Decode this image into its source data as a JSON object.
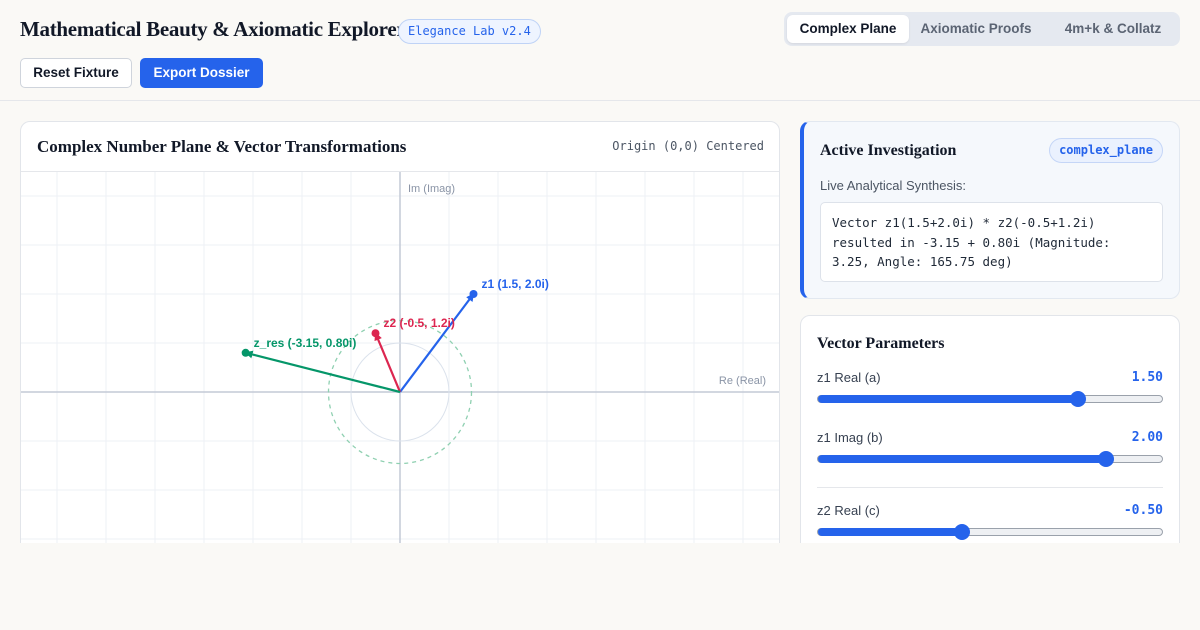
{
  "header": {
    "title": "Mathematical Beauty & Axiomatic Explorer",
    "version": "Elegance Lab v2.4",
    "tabs": [
      {
        "label": "Complex Plane",
        "active": true
      },
      {
        "label": "Axiomatic Proofs",
        "active": false
      },
      {
        "label": "4m+k & Collatz",
        "active": false
      }
    ],
    "reset_label": "Reset Fixture",
    "export_label": "Export Dossier"
  },
  "plane": {
    "title": "Complex Number Plane & Vector Transformations",
    "origin_label": "Origin (0,0) Centered",
    "axis_imag_label": "Im (Imag)",
    "axis_real_label": "Re (Real)",
    "vectors": [
      {
        "label": "z1 (1.5, 2.0i)",
        "re": 1.5,
        "im": 2.0,
        "color": "#2563eb"
      },
      {
        "label": "z2 (-0.5, 1.2i)",
        "re": -0.5,
        "im": 1.2,
        "color": "#dc2650"
      },
      {
        "label": "z_res (-3.15, 0.80i)",
        "re": -3.15,
        "im": 0.8,
        "color": "#059669"
      }
    ],
    "colors": {
      "grid": "#eef1f5",
      "axis": "#c3cad6",
      "unit_circle": "#dbe2ec",
      "magnitude_circle": "#8fd0b1"
    }
  },
  "investigation": {
    "title": "Active Investigation",
    "badge": "complex_plane",
    "synthesis_label": "Live Analytical Synthesis:",
    "synthesis_text": "Vector z1(1.5+2.0i) * z2(-0.5+1.2i) resulted in -3.15 + 0.80i (Magnitude: 3.25, Angle: 165.75 deg)"
  },
  "parameters": {
    "title": "Vector Parameters",
    "items": [
      {
        "label": "z1 Real (a)",
        "value": "1.50",
        "fraction": 0.75
      },
      {
        "label": "z1 Imag (b)",
        "value": "2.00",
        "fraction": 0.833
      },
      {
        "label": "z2 Real (c)",
        "value": "-0.50",
        "fraction": 0.417
      }
    ]
  }
}
